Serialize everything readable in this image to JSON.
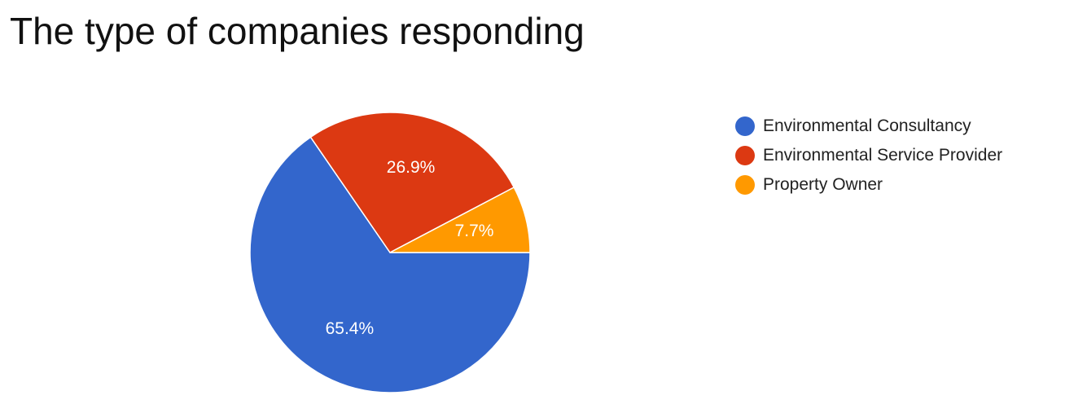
{
  "chart_data": {
    "type": "pie",
    "title": "The type of companies responding",
    "slices": [
      {
        "label": "Environmental Consultancy",
        "value": 65.4,
        "display": "65.4%",
        "color": "#3366cc"
      },
      {
        "label": "Environmental Service Provider",
        "value": 26.9,
        "display": "26.9%",
        "color": "#dc3912"
      },
      {
        "label": "Property Owner",
        "value": 7.7,
        "display": "7.7%",
        "color": "#ff9900"
      }
    ],
    "legend_position": "right"
  }
}
